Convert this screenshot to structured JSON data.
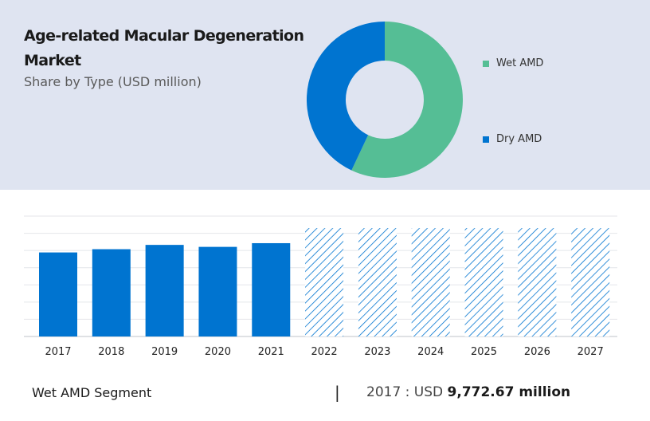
{
  "header": {
    "title": "Age-related Macular Degeneration Market",
    "subtitle": "Share by Type (USD million)"
  },
  "colors": {
    "wet": "#55be95",
    "dry": "#0074d0",
    "panel": "#dfe4f1"
  },
  "chart_data": [
    {
      "type": "pie",
      "style": "donut",
      "slices": [
        {
          "label": "Wet AMD",
          "value": 57,
          "color": "#55be95"
        },
        {
          "label": "Dry AMD",
          "value": 43,
          "color": "#0074d0"
        }
      ],
      "legend_placement": "right"
    },
    {
      "type": "bar",
      "categories": [
        "2017",
        "2018",
        "2019",
        "2020",
        "2021",
        "2022",
        "2023",
        "2024",
        "2025",
        "2026",
        "2027"
      ],
      "values": [
        9772.67,
        10150,
        10650,
        10420,
        10850,
        null,
        null,
        null,
        null,
        null,
        null
      ],
      "forecast_categories": [
        "2022",
        "2023",
        "2024",
        "2025",
        "2026",
        "2027"
      ],
      "forecast_display_level": 12600,
      "ylim": [
        0,
        14000
      ],
      "grid": true,
      "color": "#0074d0"
    }
  ],
  "footer": {
    "segment_label": "Wet AMD Segment",
    "separator": "|",
    "year_prefix": "2017 :  USD",
    "value": "9,772.67 million"
  }
}
